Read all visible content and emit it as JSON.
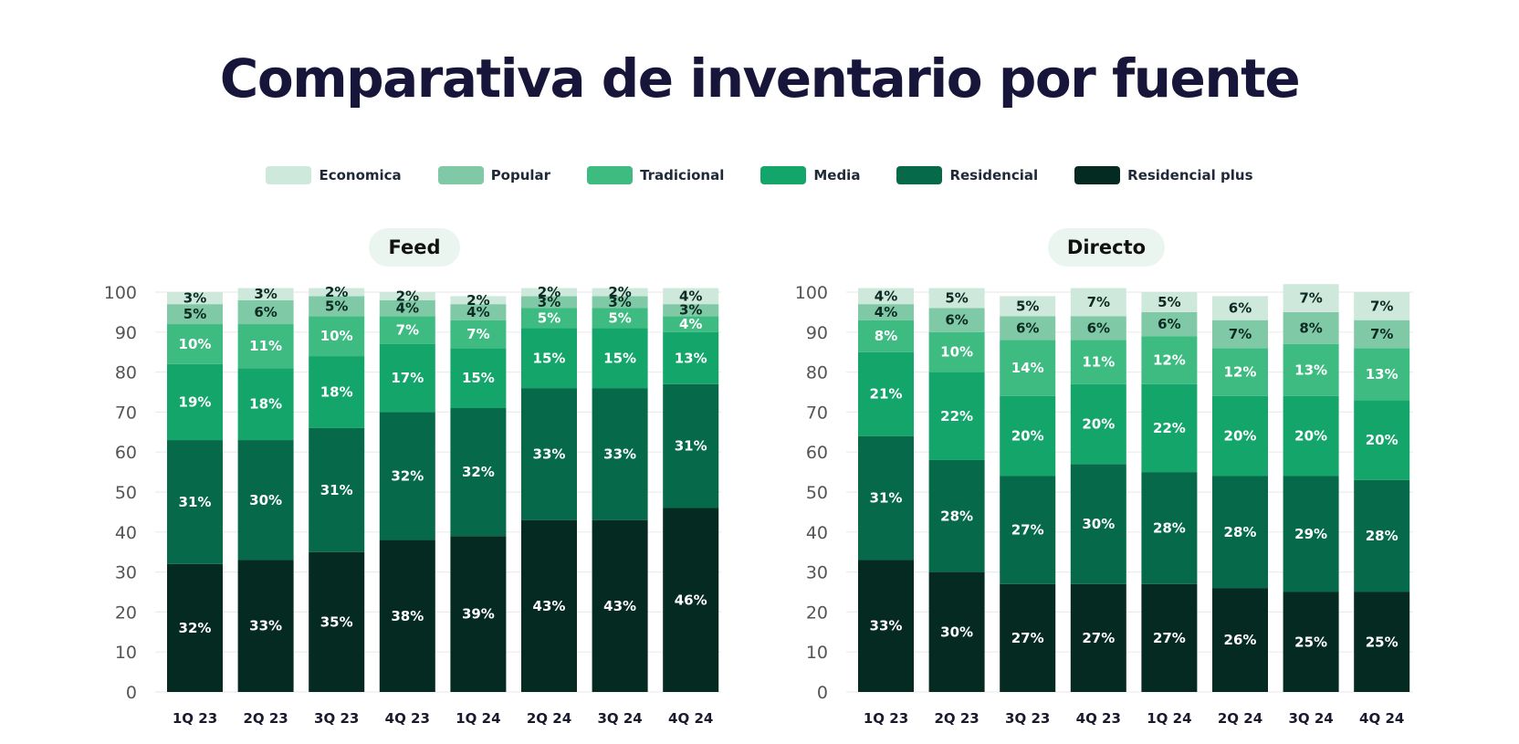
{
  "title": "Comparativa de inventario por fuente",
  "legend": [
    {
      "label": "Economica",
      "color": "#cfe8dc"
    },
    {
      "label": "Popular",
      "color": "#80c9a7"
    },
    {
      "label": "Tradicional",
      "color": "#3dbb81"
    },
    {
      "label": "Media",
      "color": "#14a56b"
    },
    {
      "label": "Residencial",
      "color": "#066a4a"
    },
    {
      "label": "Residencial plus",
      "color": "#052a22"
    }
  ],
  "chart_data": [
    {
      "type": "bar",
      "stacked": true,
      "title": "Feed",
      "xlabel": "",
      "ylabel": "",
      "ylim": [
        0,
        100
      ],
      "yticks": [
        0,
        10,
        20,
        30,
        40,
        50,
        60,
        70,
        80,
        90,
        100
      ],
      "grid": true,
      "categories": [
        "1Q 23",
        "2Q 23",
        "3Q 23",
        "4Q 23",
        "1Q 24",
        "2Q 24",
        "3Q 24",
        "4Q 24"
      ],
      "series": [
        {
          "name": "Residencial plus",
          "values": [
            32,
            33,
            35,
            38,
            39,
            43,
            43,
            46
          ]
        },
        {
          "name": "Residencial",
          "values": [
            31,
            30,
            31,
            32,
            32,
            33,
            33,
            31
          ]
        },
        {
          "name": "Media",
          "values": [
            19,
            18,
            18,
            17,
            15,
            15,
            15,
            13
          ]
        },
        {
          "name": "Tradicional",
          "values": [
            10,
            11,
            10,
            7,
            7,
            5,
            5,
            4
          ]
        },
        {
          "name": "Popular",
          "values": [
            5,
            6,
            5,
            4,
            4,
            3,
            3,
            3
          ]
        },
        {
          "name": "Economica",
          "values": [
            3,
            3,
            2,
            2,
            2,
            2,
            2,
            4
          ]
        }
      ]
    },
    {
      "type": "bar",
      "stacked": true,
      "title": "Directo",
      "xlabel": "",
      "ylabel": "",
      "ylim": [
        0,
        100
      ],
      "yticks": [
        0,
        10,
        20,
        30,
        40,
        50,
        60,
        70,
        80,
        90,
        100
      ],
      "grid": true,
      "categories": [
        "1Q 23",
        "2Q 23",
        "3Q 23",
        "4Q 23",
        "1Q 24",
        "2Q 24",
        "3Q 24",
        "4Q 24"
      ],
      "series": [
        {
          "name": "Residencial plus",
          "values": [
            33,
            30,
            27,
            27,
            27,
            26,
            25,
            25
          ]
        },
        {
          "name": "Residencial",
          "values": [
            31,
            28,
            27,
            30,
            28,
            28,
            29,
            28
          ]
        },
        {
          "name": "Media",
          "values": [
            21,
            22,
            20,
            20,
            22,
            20,
            20,
            20
          ]
        },
        {
          "name": "Tradicional",
          "values": [
            8,
            10,
            14,
            11,
            12,
            12,
            13,
            13
          ]
        },
        {
          "name": "Popular",
          "values": [
            4,
            6,
            6,
            6,
            6,
            7,
            8,
            7
          ]
        },
        {
          "name": "Economica",
          "values": [
            4,
            5,
            5,
            7,
            5,
            6,
            7,
            7
          ]
        }
      ]
    }
  ]
}
